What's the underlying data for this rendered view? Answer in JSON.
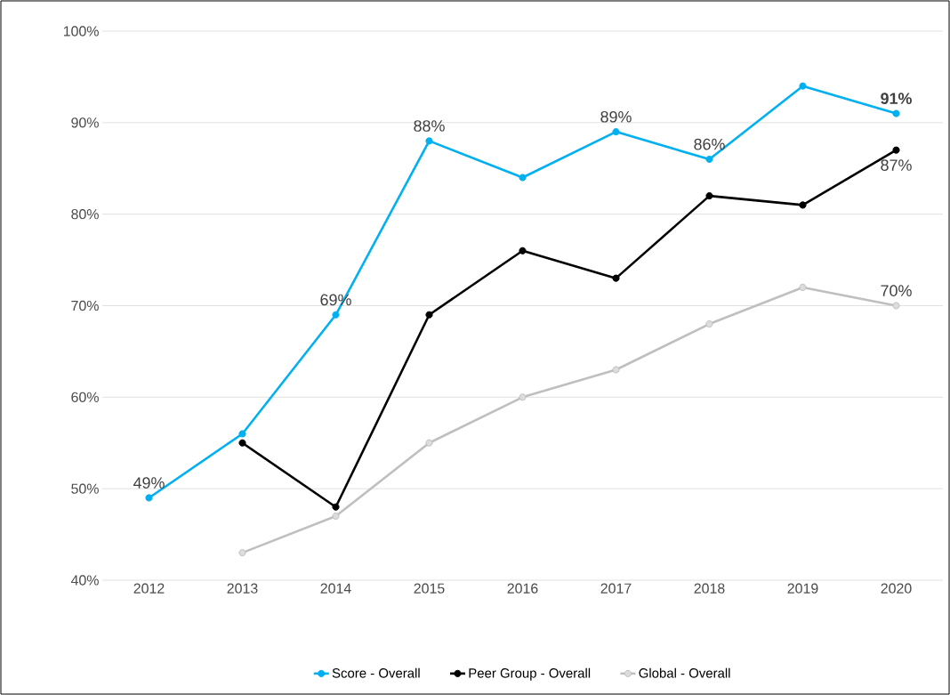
{
  "chart_data": {
    "type": "line",
    "categories": [
      "2012",
      "2013",
      "2014",
      "2015",
      "2016",
      "2017",
      "2018",
      "2019",
      "2020"
    ],
    "series": [
      {
        "name": "Score - Overall",
        "color": "#00b0f0",
        "values": [
          49,
          56,
          69,
          88,
          84,
          89,
          86,
          94,
          91
        ],
        "value_labels": [
          "49%",
          null,
          "69%",
          "88%",
          null,
          "89%",
          "86%",
          null,
          "**91%**"
        ]
      },
      {
        "name": "Peer Group - Overall",
        "color": "#000000",
        "values": [
          null,
          55,
          48,
          69,
          76,
          73,
          82,
          81,
          87
        ],
        "value_labels": [
          null,
          null,
          null,
          null,
          null,
          null,
          null,
          null,
          "87%"
        ]
      },
      {
        "name": "Global - Overall",
        "color": "#bfbfbf",
        "values": [
          null,
          43,
          47,
          55,
          60,
          63,
          68,
          72,
          70
        ],
        "value_labels": [
          null,
          null,
          null,
          null,
          null,
          null,
          null,
          null,
          "70%"
        ]
      }
    ],
    "ylim": [
      40,
      100
    ],
    "yticks": [
      {
        "value": 40,
        "label": "40%"
      },
      {
        "value": 50,
        "label": "50%"
      },
      {
        "value": 60,
        "label": "60%"
      },
      {
        "value": 70,
        "label": "70%"
      },
      {
        "value": 80,
        "label": "80%"
      },
      {
        "value": 90,
        "label": "90%"
      },
      {
        "value": 100,
        "label": "100%"
      }
    ],
    "grid": "y",
    "legend": "bottom",
    "marker": "circle",
    "line_style": "solid"
  }
}
